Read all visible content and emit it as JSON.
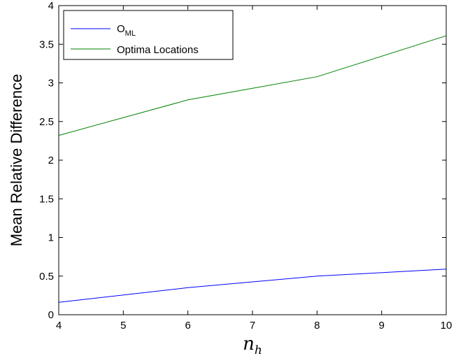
{
  "chart_data": {
    "type": "line",
    "xlabel": {
      "main": "n",
      "sub": "h"
    },
    "ylabel": "Mean Relative Difference",
    "xlim": [
      4,
      10
    ],
    "ylim": [
      0,
      4
    ],
    "xticks": [
      4,
      5,
      6,
      7,
      8,
      9,
      10
    ],
    "yticks": [
      0,
      0.5,
      1,
      1.5,
      2,
      2.5,
      3,
      3.5,
      4
    ],
    "ytick_labels": [
      "0",
      "0.5",
      "1",
      "1.5",
      "2",
      "2.5",
      "3",
      "3.5",
      "4"
    ],
    "grid": false,
    "legend_position": "top-left",
    "series": [
      {
        "name": "O",
        "name_sub": "ML",
        "color": "#0000ff",
        "x": [
          4,
          6,
          8,
          10
        ],
        "y": [
          0.16,
          0.35,
          0.5,
          0.59
        ]
      },
      {
        "name": "Optima Locations",
        "color": "#008000",
        "x": [
          4,
          6,
          8,
          10
        ],
        "y": [
          2.32,
          2.78,
          3.08,
          3.61
        ]
      }
    ]
  }
}
